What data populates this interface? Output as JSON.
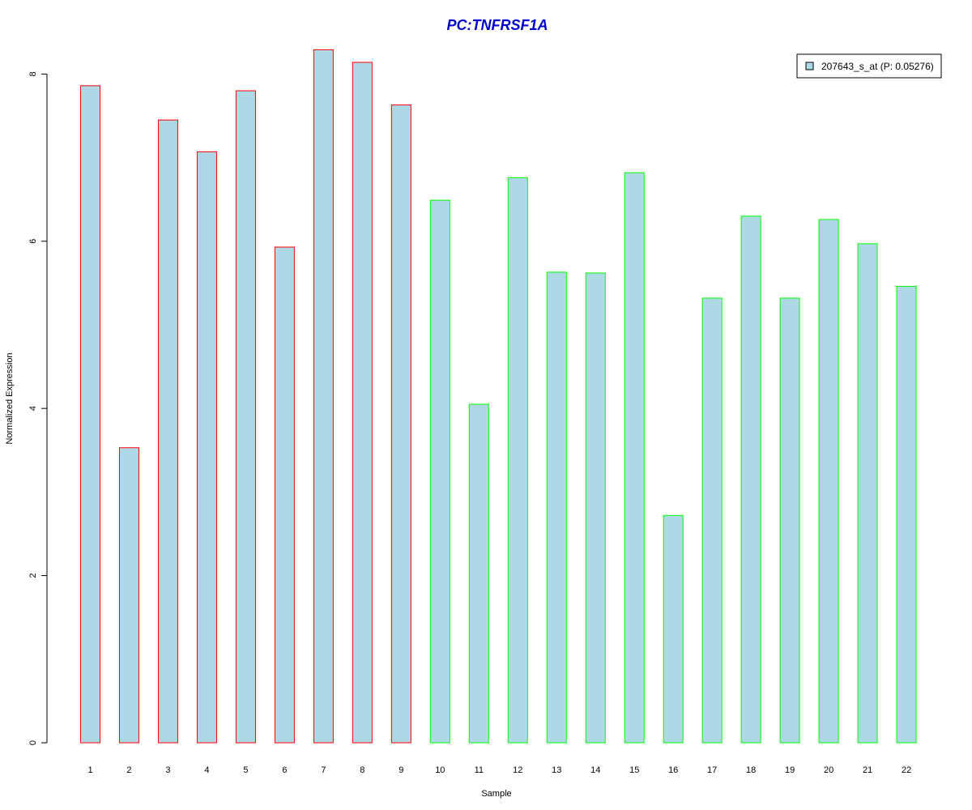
{
  "chart_data": {
    "type": "bar",
    "title": "PC:TNFRSF1A",
    "title_color": "#0000CD",
    "xlabel": "Sample",
    "ylabel": "Normalized Expression",
    "ylim": [
      0,
      8.3
    ],
    "yticks": [
      0,
      2,
      4,
      6,
      8
    ],
    "categories": [
      "1",
      "2",
      "3",
      "4",
      "5",
      "6",
      "7",
      "8",
      "9",
      "10",
      "11",
      "12",
      "13",
      "14",
      "15",
      "16",
      "17",
      "18",
      "19",
      "20",
      "21",
      "22"
    ],
    "series": [
      {
        "name": "207643_s_at (P: 0.05276)",
        "fill": "#ADD8E6",
        "values": [
          7.86,
          3.53,
          7.45,
          7.07,
          7.8,
          5.93,
          8.29,
          8.14,
          7.63,
          6.49,
          4.05,
          6.76,
          5.63,
          5.62,
          6.82,
          2.72,
          5.32,
          6.3,
          5.32,
          6.26,
          5.97,
          5.46
        ]
      }
    ],
    "bar_edge_colors": [
      "#FF0000",
      "#FF0000",
      "#FF0000",
      "#FF0000",
      "#FF0000",
      "#FF0000",
      "#FF0000",
      "#FF0000",
      "#FF0000",
      "#00FF00",
      "#00FF00",
      "#00FF00",
      "#00FF00",
      "#00FF00",
      "#00FF00",
      "#00FF00",
      "#00FF00",
      "#00FF00",
      "#00FF00",
      "#00FF00",
      "#00FF00",
      "#00FF00"
    ],
    "grid": false,
    "legend_position": "top-right"
  }
}
